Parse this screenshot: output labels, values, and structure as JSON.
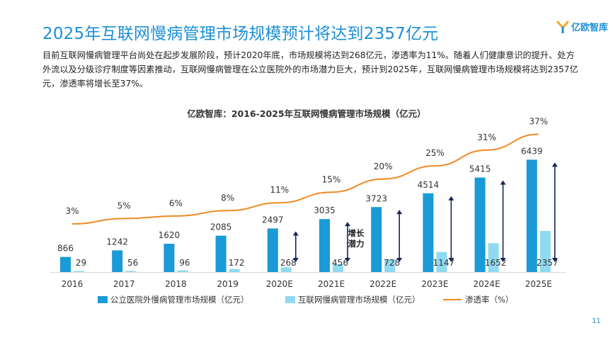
{
  "page": {
    "title": "2025年互联网慢病管理市场规模预计将达到2357亿元",
    "logo_text": "亿欧智库",
    "intro": "目前互联网慢病管理平台尚处在起步发展阶段，预计2020年底，市场规模将达到268亿元，渗透率为11%。随着人们健康意识的提升、处方外流以及分级诊疗制度等因素推动，互联网慢病管理在公立医院外的市场潜力巨大，预计到2025年，互联网慢病管理市场规模将达到2357亿元，渗透率将增长至37%。",
    "page_number": "11",
    "colors": {
      "title": "#1d8fd6",
      "bar_outside": "#1a9ad6",
      "bar_internet": "#8fdaf0",
      "line": "#f08a24",
      "arrow": "#17245e"
    }
  },
  "chart_data": {
    "type": "bar",
    "title": "亿欧智库：2016-2025年互联网慢病管理市场规模（亿元）",
    "categories": [
      "2016",
      "2017",
      "2018",
      "2019",
      "2020E",
      "2021E",
      "2022E",
      "2023E",
      "2024E",
      "2025E"
    ],
    "series": [
      {
        "name": "公立医院外慢病管理市场规模（亿元）",
        "type": "bar",
        "values": [
          866,
          1242,
          1620,
          2085,
          2497,
          3035,
          3723,
          4514,
          5415,
          6439
        ]
      },
      {
        "name": "互联网慢病管理市场规模（亿元）",
        "type": "bar",
        "values": [
          29,
          56,
          96,
          172,
          268,
          456,
          728,
          1147,
          1652,
          2357
        ]
      },
      {
        "name": "渗透率（%）",
        "type": "line",
        "values": [
          3,
          5,
          6,
          8,
          11,
          15,
          20,
          25,
          31,
          37
        ],
        "labels": [
          "3%",
          "5%",
          "6%",
          "8%",
          "11%",
          "15%",
          "20%",
          "25%",
          "31%",
          "37%"
        ]
      }
    ],
    "annotation": {
      "text_line1": "增长",
      "text_line2": "潜力"
    },
    "legend_position": "bottom",
    "ylim": [
      0,
      7000
    ]
  }
}
